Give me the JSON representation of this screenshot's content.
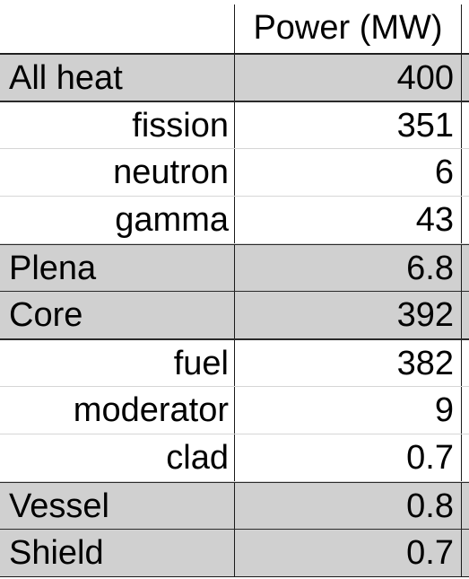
{
  "table": {
    "header": {
      "label": "",
      "value": "Power (MW)"
    },
    "rows": [
      {
        "label": "All heat",
        "value": "400",
        "shaded": true,
        "indent": false
      },
      {
        "label": "fission",
        "value": "351",
        "shaded": false,
        "indent": true
      },
      {
        "label": "neutron",
        "value": "6",
        "shaded": false,
        "indent": true
      },
      {
        "label": "gamma",
        "value": "43",
        "shaded": false,
        "indent": true
      },
      {
        "label": "Plena",
        "value": "6.8",
        "shaded": true,
        "indent": false
      },
      {
        "label": "Core",
        "value": "392",
        "shaded": true,
        "indent": false
      },
      {
        "label": "fuel",
        "value": "382",
        "shaded": false,
        "indent": true
      },
      {
        "label": "moderator",
        "value": "9",
        "shaded": false,
        "indent": true
      },
      {
        "label": "clad",
        "value": "0.7",
        "shaded": false,
        "indent": true
      },
      {
        "label": "Vessel",
        "value": "0.8",
        "shaded": true,
        "indent": false
      },
      {
        "label": "Shield",
        "value": "0.7",
        "shaded": true,
        "indent": false
      }
    ]
  },
  "colors": {
    "shaded_row": "#d0d0d0",
    "border": "#1a1a1a"
  }
}
